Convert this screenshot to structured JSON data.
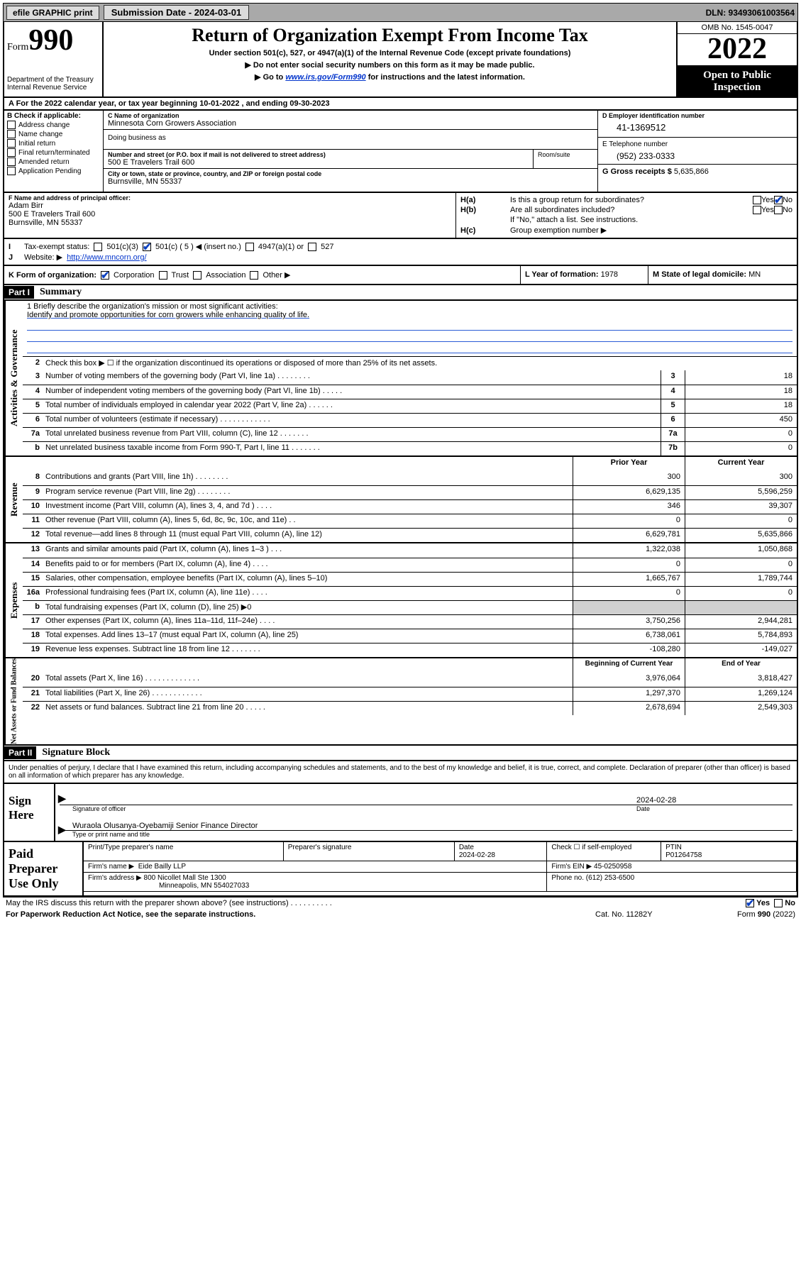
{
  "topbar": {
    "efile": "efile GRAPHIC print",
    "submission_label": "Submission Date - 2024-03-01",
    "dln": "DLN: 93493061003564"
  },
  "header": {
    "form_word": "Form",
    "form_num": "990",
    "dept": "Department of the Treasury",
    "irs": "Internal Revenue Service",
    "title": "Return of Organization Exempt From Income Tax",
    "sub1": "Under section 501(c), 527, or 4947(a)(1) of the Internal Revenue Code (except private foundations)",
    "sub2_prefix": "▶ Do not enter social security numbers on this form as it may be made public.",
    "sub3_prefix": "▶ Go to ",
    "sub3_link": "www.irs.gov/Form990",
    "sub3_suffix": " for instructions and the latest information.",
    "omb": "OMB No. 1545-0047",
    "year": "2022",
    "opi": "Open to Public Inspection"
  },
  "rowA": {
    "text": "A For the 2022 calendar year, or tax year beginning 10-01-2022   , and ending 09-30-2023"
  },
  "colB": {
    "label": "B Check if applicable:",
    "opts": [
      "Address change",
      "Name change",
      "Initial return",
      "Final return/terminated",
      "Amended return",
      "Application Pending"
    ]
  },
  "colC": {
    "name_lbl": "C Name of organization",
    "name": "Minnesota Corn Growers Association",
    "dba_lbl": "Doing business as",
    "street_lbl": "Number and street (or P.O. box if mail is not delivered to street address)",
    "room_lbl": "Room/suite",
    "street": "500 E Travelers Trail 600",
    "city_lbl": "City or town, state or province, country, and ZIP or foreign postal code",
    "city": "Burnsville, MN  55337"
  },
  "colD": {
    "lbl": "D Employer identification number",
    "val": "41-1369512"
  },
  "colE": {
    "lbl": "E Telephone number",
    "val": "(952) 233-0333"
  },
  "colG": {
    "lbl": "G Gross receipts $",
    "val": "5,635,866"
  },
  "colF": {
    "lbl": "F Name and address of principal officer:",
    "name": "Adam Birr",
    "addr1": "500 E Travelers Trail 600",
    "addr2": "Burnsville, MN  55337"
  },
  "colH": {
    "a": "H(a)  Is this a group return for subordinates?",
    "a_yes": "Yes",
    "a_no": "No",
    "a_checked": "no",
    "b": "H(b)  Are all subordinates included?",
    "b_yes": "Yes",
    "b_no": "No",
    "b_note": "If \"No,\" attach a list. See instructions.",
    "c": "H(c)  Group exemption number ▶"
  },
  "rowI": {
    "lbl": "I  Tax-exempt status:",
    "opts": {
      "a": "501(c)(3)",
      "b": "501(c) ( 5 ) ◀ (insert no.)",
      "c": "4947(a)(1) or",
      "d": "527"
    },
    "b_checked": true
  },
  "rowJ": {
    "lbl": "J  Website: ▶",
    "val": "http://www.mncorn.org/"
  },
  "rowK": {
    "lbl": "K Form of organization:",
    "opts": [
      "Corporation",
      "Trust",
      "Association",
      "Other ▶"
    ],
    "checked": 0
  },
  "rowL": {
    "lbl": "L Year of formation:",
    "val": "1978"
  },
  "rowM": {
    "lbl": "M State of legal domicile:",
    "val": "MN"
  },
  "parts": {
    "p1_hdr": "Part I",
    "p1_title": "Summary",
    "mission_lbl": "1  Briefly describe the organization's mission or most significant activities:",
    "mission": "Identify and promote opportunities for corn growers while enhancing quality of life.",
    "line2": "Check this box ▶ ☐  if the organization discontinued its operations or disposed of more than 25% of its net assets.",
    "p2_hdr": "Part II",
    "p2_title": "Signature Block"
  },
  "summary": {
    "sections": [
      {
        "sidelabel": "Activities & Governance",
        "rows": [
          {
            "n": "3",
            "t": "Number of voting members of the governing body (Part VI, line 1a)   .   .   .   .   .   .   .   .",
            "c": "3",
            "v": "18"
          },
          {
            "n": "4",
            "t": "Number of independent voting members of the governing body (Part VI, line 1b)   .   .   .   .   .",
            "c": "4",
            "v": "18"
          },
          {
            "n": "5",
            "t": "Total number of individuals employed in calendar year 2022 (Part V, line 2a)   .   .   .   .   .   .",
            "c": "5",
            "v": "18"
          },
          {
            "n": "6",
            "t": "Total number of volunteers (estimate if necessary)   .   .   .   .   .   .   .   .   .   .   .   .",
            "c": "6",
            "v": "450"
          },
          {
            "n": "7a",
            "t": "Total unrelated business revenue from Part VIII, column (C), line 12   .   .   .   .   .   .   .",
            "c": "7a",
            "v": "0"
          },
          {
            "n": "b",
            "t": "Net unrelated business taxable income from Form 990-T, Part I, line 11   .   .   .   .   .   .   .",
            "c": "7b",
            "v": "0"
          }
        ]
      }
    ],
    "two_col_header": {
      "prior": "Prior Year",
      "current": "Current Year"
    },
    "revenue": {
      "sidelabel": "Revenue",
      "rows": [
        {
          "n": "8",
          "t": "Contributions and grants (Part VIII, line 1h)   .   .   .   .   .   .   .   .",
          "p": "300",
          "c": "300"
        },
        {
          "n": "9",
          "t": "Program service revenue (Part VIII, line 2g)   .   .   .   .   .   .   .   .",
          "p": "6,629,135",
          "c": "5,596,259"
        },
        {
          "n": "10",
          "t": "Investment income (Part VIII, column (A), lines 3, 4, and 7d )   .   .   .   .",
          "p": "346",
          "c": "39,307"
        },
        {
          "n": "11",
          "t": "Other revenue (Part VIII, column (A), lines 5, 6d, 8c, 9c, 10c, and 11e)   .   .",
          "p": "0",
          "c": "0"
        },
        {
          "n": "12",
          "t": "Total revenue—add lines 8 through 11 (must equal Part VIII, column (A), line 12)",
          "p": "6,629,781",
          "c": "5,635,866"
        }
      ]
    },
    "expenses": {
      "sidelabel": "Expenses",
      "rows": [
        {
          "n": "13",
          "t": "Grants and similar amounts paid (Part IX, column (A), lines 1–3 )   .   .   .",
          "p": "1,322,038",
          "c": "1,050,868"
        },
        {
          "n": "14",
          "t": "Benefits paid to or for members (Part IX, column (A), line 4)   .   .   .   .",
          "p": "0",
          "c": "0"
        },
        {
          "n": "15",
          "t": "Salaries, other compensation, employee benefits (Part IX, column (A), lines 5–10)",
          "p": "1,665,767",
          "c": "1,789,744"
        },
        {
          "n": "16a",
          "t": "Professional fundraising fees (Part IX, column (A), line 11e)   .   .   .   .",
          "p": "0",
          "c": "0"
        },
        {
          "n": "b",
          "t": "Total fundraising expenses (Part IX, column (D), line 25) ▶0",
          "p": "__shaded__",
          "c": "__shaded__"
        },
        {
          "n": "17",
          "t": "Other expenses (Part IX, column (A), lines 11a–11d, 11f–24e)   .   .   .   .",
          "p": "3,750,256",
          "c": "2,944,281"
        },
        {
          "n": "18",
          "t": "Total expenses. Add lines 13–17 (must equal Part IX, column (A), line 25)",
          "p": "6,738,061",
          "c": "5,784,893"
        },
        {
          "n": "19",
          "t": "Revenue less expenses. Subtract line 18 from line 12   .   .   .   .   .   .   .",
          "p": "-108,280",
          "c": "-149,027"
        }
      ]
    },
    "net_header": {
      "prior": "Beginning of Current Year",
      "current": "End of Year"
    },
    "net": {
      "sidelabel": "Net Assets or Fund Balances",
      "rows": [
        {
          "n": "20",
          "t": "Total assets (Part X, line 16)   .   .   .   .   .   .   .   .   .   .   .   .   .",
          "p": "3,976,064",
          "c": "3,818,427"
        },
        {
          "n": "21",
          "t": "Total liabilities (Part X, line 26)   .   .   .   .   .   .   .   .   .   .   .   .",
          "p": "1,297,370",
          "c": "1,269,124"
        },
        {
          "n": "22",
          "t": "Net assets or fund balances. Subtract line 21 from line 20   .   .   .   .   .",
          "p": "2,678,694",
          "c": "2,549,303"
        }
      ]
    }
  },
  "sig": {
    "penalty": "Under penalties of perjury, I declare that I have examined this return, including accompanying schedules and statements, and to the best of my knowledge and belief, it is true, correct, and complete. Declaration of preparer (other than officer) is based on all information of which preparer has any knowledge.",
    "sign_here": "Sign Here",
    "sig_officer_lbl": "Signature of officer",
    "sig_date": "2024-02-28",
    "date_lbl": "Date",
    "typed_name": "Wuraola Olusanya-Oyebamiji Senior Finance Director",
    "typed_lbl": "Type or print name and title",
    "paid": "Paid Preparer Use Only",
    "prep_name_lbl": "Print/Type preparer's name",
    "prep_sig_lbl": "Preparer's signature",
    "prep_date_lbl": "Date",
    "prep_date": "2024-02-28",
    "prep_check_lbl": "Check ☐ if self-employed",
    "ptin_lbl": "PTIN",
    "ptin": "P01264758",
    "firm_name_lbl": "Firm's name      ▶",
    "firm_name": "Eide Bailly LLP",
    "firm_ein_lbl": "Firm's EIN ▶",
    "firm_ein": "45-0250958",
    "firm_addr_lbl": "Firm's address ▶",
    "firm_addr1": "800 Nicollet Mall Ste 1300",
    "firm_addr2": "Minneapolis, MN  554027033",
    "phone_lbl": "Phone no.",
    "phone": "(612) 253-6500"
  },
  "footer": {
    "discuss": "May the IRS discuss this return with the preparer shown above? (see instructions)   .   .   .   .   .   .   .   .   .   .",
    "yes": "Yes",
    "no": "No",
    "paperwork": "For Paperwork Reduction Act Notice, see the separate instructions.",
    "cat": "Cat. No. 11282Y",
    "formno": "Form 990 (2022)"
  }
}
